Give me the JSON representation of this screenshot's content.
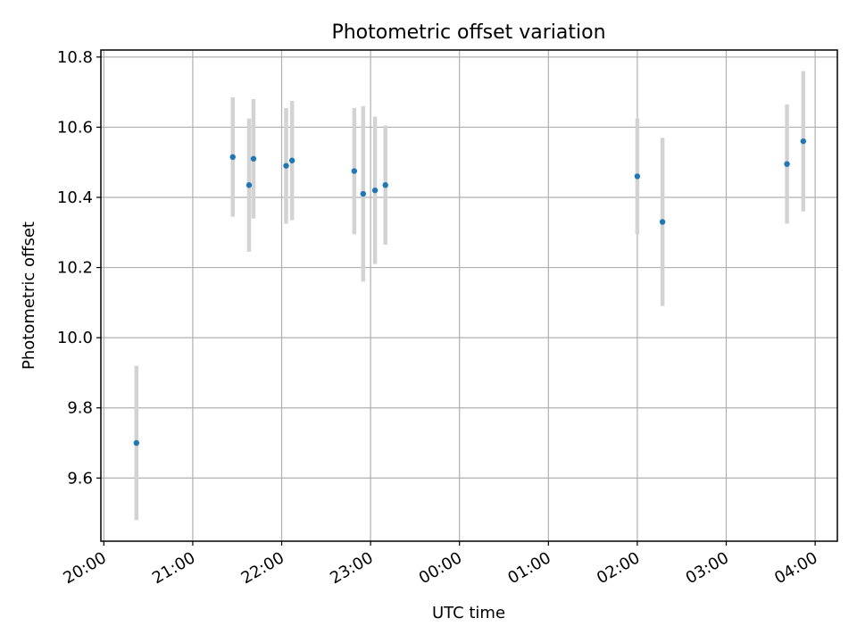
{
  "chart_data": {
    "type": "scatter",
    "title": "Photometric offset variation",
    "xlabel": "UTC time",
    "ylabel": "Photometric offset",
    "x_tick_labels": [
      "20:00",
      "21:00",
      "22:00",
      "23:00",
      "00:00",
      "01:00",
      "02:00",
      "03:00",
      "04:00"
    ],
    "x_ticks": [
      "20:00",
      "21:00",
      "22:00",
      "23:00",
      "00:00",
      "01:00",
      "02:00",
      "03:00",
      "04:00"
    ],
    "x_tick_offsets_hours": [
      0,
      1,
      2,
      3,
      4,
      5,
      6,
      7,
      8
    ],
    "y_ticks": [
      9.6,
      9.8,
      10.0,
      10.2,
      10.4,
      10.6,
      10.8
    ],
    "y_tick_labels": [
      "9.6",
      "9.8",
      "10.0",
      "10.2",
      "10.4",
      "10.6",
      "10.8"
    ],
    "xlim": [
      "19:58",
      "04:15"
    ],
    "ylim": [
      9.42,
      10.82
    ],
    "grid": true,
    "legend": "none",
    "series": [
      {
        "marker_color": "#1f77b4",
        "errorbar_color": "#d3d3d3",
        "points": [
          {
            "x": "20:22",
            "y": 9.7,
            "yerr": 0.22
          },
          {
            "x": "21:27",
            "y": 10.515,
            "yerr": 0.17
          },
          {
            "x": "21:38",
            "y": 10.435,
            "yerr": 0.19
          },
          {
            "x": "21:41",
            "y": 10.51,
            "yerr": 0.17
          },
          {
            "x": "22:03",
            "y": 10.49,
            "yerr": 0.165
          },
          {
            "x": "22:07",
            "y": 10.505,
            "yerr": 0.17
          },
          {
            "x": "22:49",
            "y": 10.475,
            "yerr": 0.18
          },
          {
            "x": "22:55",
            "y": 10.41,
            "yerr": 0.25
          },
          {
            "x": "23:03",
            "y": 10.42,
            "yerr": 0.21
          },
          {
            "x": "23:10",
            "y": 10.435,
            "yerr": 0.17
          },
          {
            "x": "02:00",
            "y": 10.46,
            "yerr": 0.165
          },
          {
            "x": "02:17",
            "y": 10.33,
            "yerr": 0.24
          },
          {
            "x": "03:41",
            "y": 10.495,
            "yerr": 0.17
          },
          {
            "x": "03:52",
            "y": 10.56,
            "yerr": 0.2
          }
        ]
      }
    ]
  }
}
